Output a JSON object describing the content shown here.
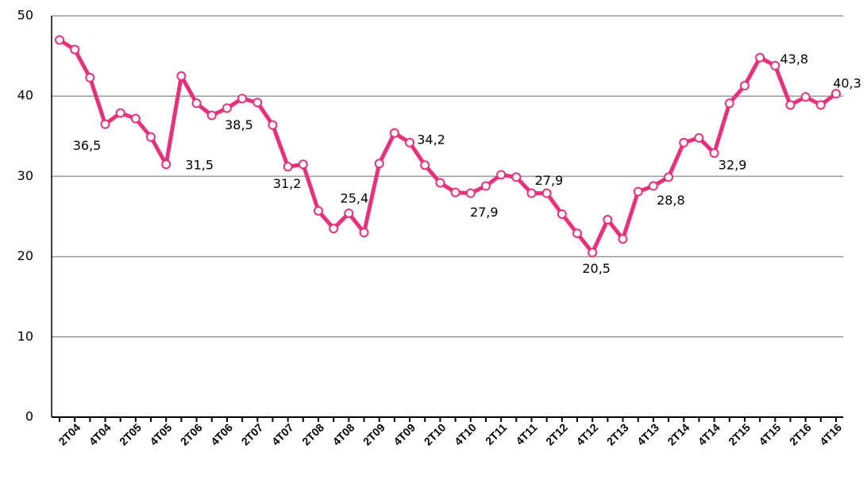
{
  "chart_data": {
    "type": "line",
    "categories": [
      null,
      "2T04",
      null,
      "4T04",
      null,
      "2T05",
      null,
      "4T05",
      null,
      "2T06",
      null,
      "4T06",
      null,
      "2T07",
      null,
      "4T07",
      null,
      "2T08",
      null,
      "4T08",
      null,
      "2T09",
      null,
      "4T09",
      null,
      "2T10",
      null,
      "4T10",
      null,
      "2T11",
      null,
      "4T11",
      null,
      "2T12",
      null,
      "4T12",
      null,
      "2T13",
      null,
      "4T13",
      null,
      "2T14",
      null,
      "4T14",
      null,
      "2T15",
      null,
      "4T15",
      null,
      "2T16",
      null,
      "4T16"
    ],
    "values": [
      47.0,
      45.8,
      42.3,
      36.5,
      37.9,
      37.2,
      34.9,
      31.5,
      42.5,
      39.1,
      37.6,
      38.5,
      39.7,
      39.2,
      36.4,
      31.2,
      31.5,
      25.7,
      23.5,
      25.4,
      23.0,
      31.6,
      35.4,
      34.2,
      31.4,
      29.2,
      28.0,
      27.9,
      28.8,
      30.2,
      29.9,
      27.9,
      27.9,
      25.3,
      22.9,
      20.5,
      24.6,
      22.2,
      28.1,
      28.8,
      29.9,
      34.2,
      34.8,
      32.9,
      39.1,
      41.3,
      44.8,
      43.8,
      38.9,
      39.9,
      38.9,
      40.3
    ],
    "value_labels": [
      null,
      null,
      null,
      "36,5",
      null,
      null,
      null,
      "31,5",
      null,
      null,
      null,
      "38,5",
      null,
      null,
      null,
      "31,2",
      null,
      null,
      null,
      "25,4",
      null,
      null,
      null,
      "34,2",
      null,
      null,
      null,
      "27,9",
      null,
      null,
      null,
      "27,9",
      null,
      null,
      null,
      "20,5",
      null,
      null,
      null,
      "28,8",
      null,
      null,
      null,
      "32,9",
      null,
      null,
      null,
      "43,8",
      null,
      null,
      null,
      "40,3"
    ],
    "color": "#e8317a",
    "ylim": [
      0,
      50
    ],
    "yticks": [
      0,
      10,
      20,
      30,
      40,
      50
    ],
    "grid": true
  }
}
